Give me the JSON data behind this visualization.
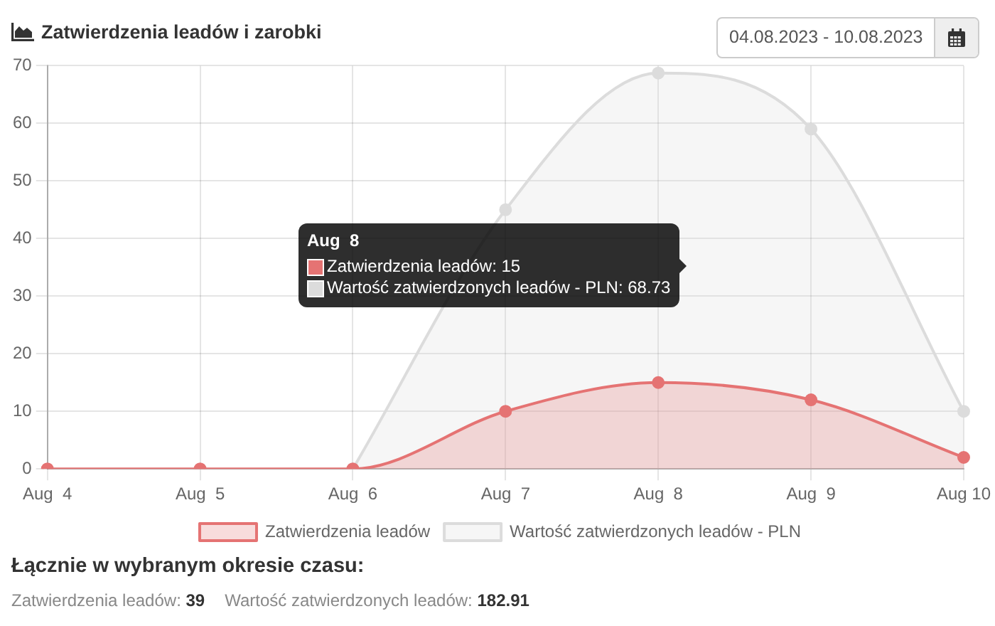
{
  "chart_data": {
    "type": "area",
    "title": "Zatwierdzenia leadów i zarobki",
    "categories": [
      "Aug  4",
      "Aug  5",
      "Aug  6",
      "Aug  7",
      "Aug  8",
      "Aug  9",
      "Aug 10"
    ],
    "series": [
      {
        "name": "Zatwierdzenia leadów",
        "color": "#e57373",
        "values": [
          0,
          0,
          0,
          10,
          15,
          12,
          2
        ]
      },
      {
        "name": "Wartość zatwierdzonych leadów - PLN",
        "color": "#dcdcdc",
        "values": [
          null,
          null,
          0,
          45,
          68.73,
          59,
          10
        ]
      }
    ],
    "ylim": [
      0,
      70
    ],
    "yticks": [
      0,
      10,
      20,
      30,
      40,
      50,
      60,
      70
    ],
    "grid": true,
    "legend": "bottom",
    "marker": "circle",
    "annotations": [
      "04.08.2023 - 10.08.2023",
      "Łącznie w wybranym okresie czasu:",
      "Zatwierdzenia leadów:",
      "39",
      "Wartość zatwierdzonych leadów:",
      "182.91",
      "Aug  8\nZatwierdzenia leadów: 15\nWartość zatwierdzonych leadów - PLN: 68.73"
    ]
  }
}
